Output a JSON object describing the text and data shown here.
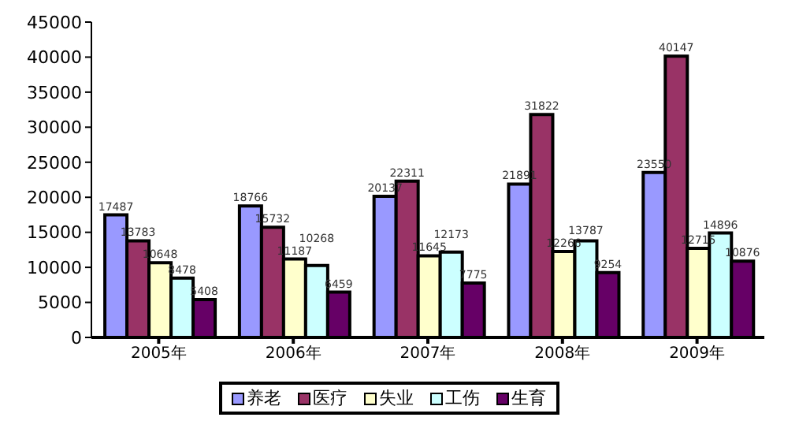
{
  "chart_data": {
    "type": "bar",
    "categories": [
      "2005年",
      "2006年",
      "2007年",
      "2008年",
      "2009年"
    ],
    "series": [
      {
        "name": "养老",
        "color": "#9999ff",
        "values": [
          17487,
          18766,
          20137,
          21891,
          23550
        ]
      },
      {
        "name": "医疗",
        "color": "#993366",
        "values": [
          13783,
          15732,
          22311,
          31822,
          40147
        ]
      },
      {
        "name": "失业",
        "color": "#ffffcc",
        "values": [
          10648,
          11187,
          11645,
          12266,
          12715
        ]
      },
      {
        "name": "工伤",
        "color": "#ccffff",
        "values": [
          8478,
          10268,
          12173,
          13787,
          14896
        ]
      },
      {
        "name": "生育",
        "color": "#660066",
        "values": [
          5408,
          6459,
          7775,
          9254,
          10876
        ]
      }
    ],
    "ylim": [
      0,
      45000
    ],
    "yticks": [
      0,
      5000,
      10000,
      15000,
      20000,
      25000,
      30000,
      35000,
      40000,
      45000
    ],
    "grid": false,
    "legend": "bottom",
    "data_labels": true
  }
}
